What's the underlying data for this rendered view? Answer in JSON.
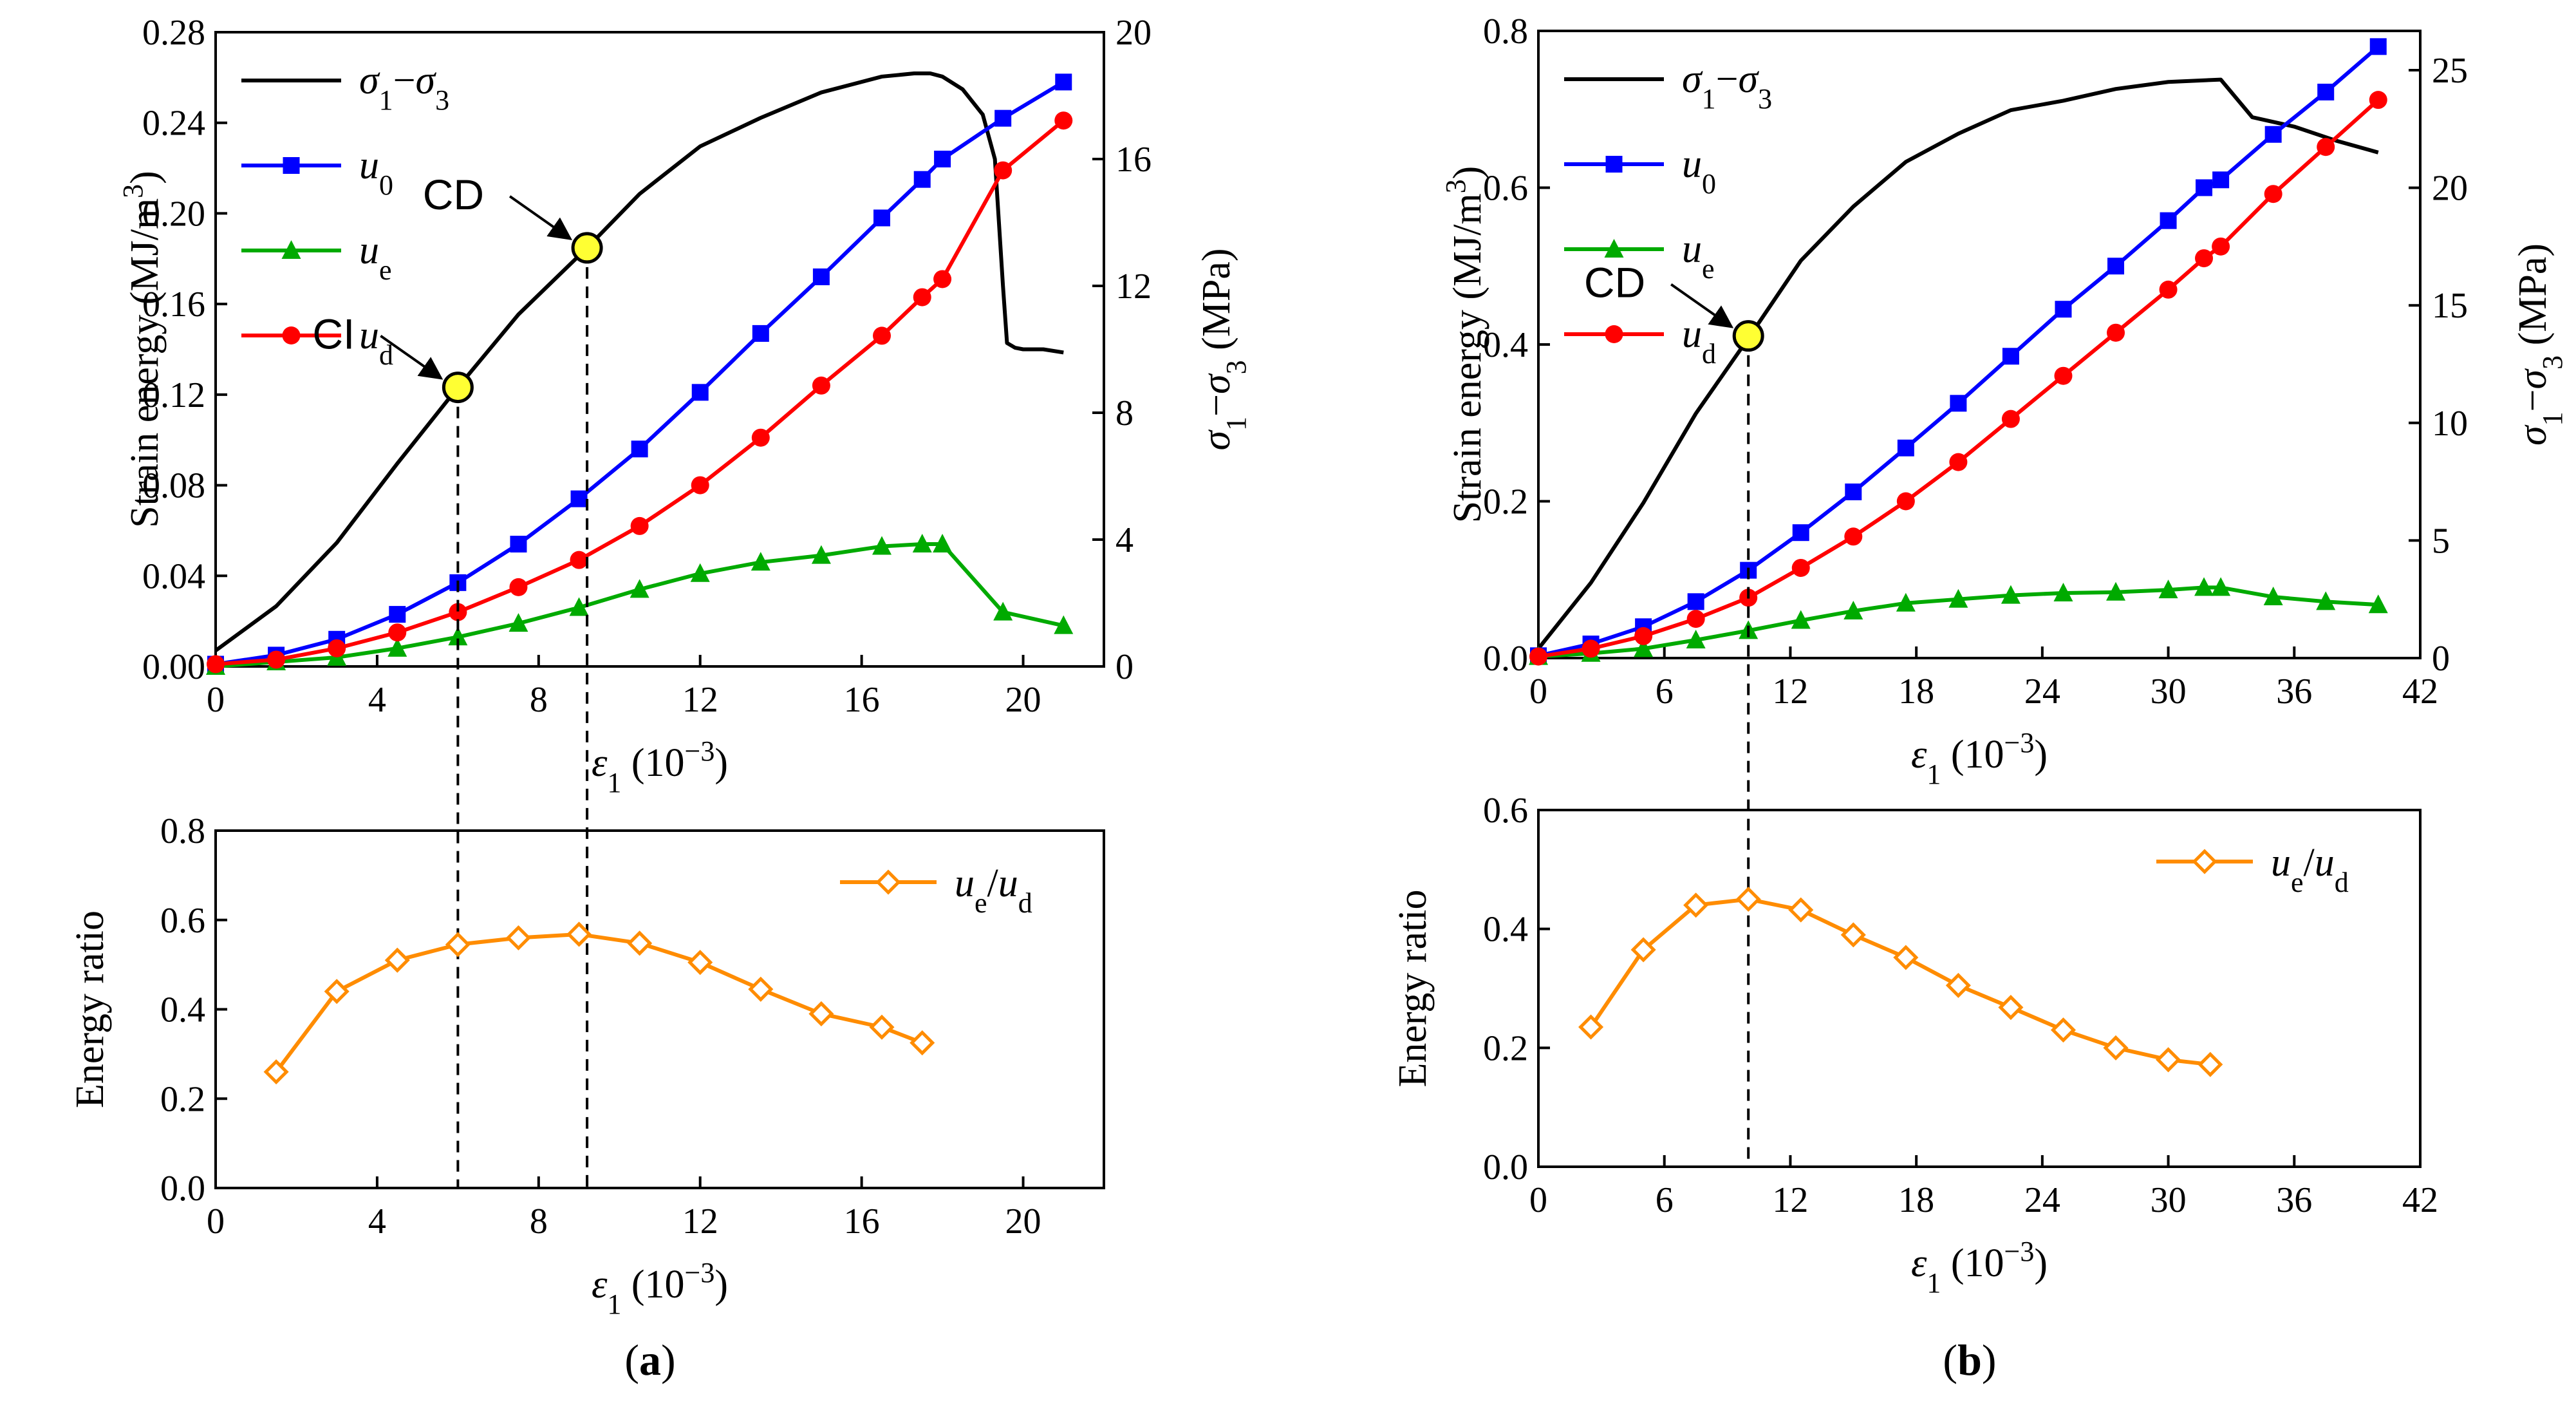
{
  "chart_data": [
    {
      "id": "a_top",
      "type": "line",
      "panel_label": "a",
      "xlabel": "ε1 (10−3)",
      "ylabel_left": "Strain energy (MJ/m3)",
      "ylabel_right": "σ1−σ3 (MPa)",
      "xlim": [
        0,
        22
      ],
      "ylim_left": [
        0,
        0.28
      ],
      "ylim_right": [
        0,
        20
      ],
      "x_ticks": [
        0,
        4,
        8,
        12,
        16,
        20
      ],
      "y_ticks_left": [
        0.0,
        0.04,
        0.08,
        0.12,
        0.16,
        0.2,
        0.24,
        0.28
      ],
      "y_ticks_right": [
        0,
        4,
        8,
        12,
        16,
        20
      ],
      "legend_position": "top-left",
      "series": [
        {
          "name": "σ1−σ3",
          "axis": "right",
          "color": "#000000",
          "marker": "none",
          "x": [
            0,
            1.5,
            3,
            4.5,
            6,
            7.5,
            9.2,
            10.5,
            12,
            13.5,
            15,
            16.5,
            17.3,
            17.7,
            18.0,
            18.5,
            19.0,
            19.3,
            19.5,
            19.6,
            19.8,
            20.0,
            20.5,
            21.0
          ],
          "y": [
            0.5,
            1.9,
            3.9,
            6.4,
            8.8,
            11.1,
            13.2,
            14.9,
            16.4,
            17.3,
            18.1,
            18.6,
            18.7,
            18.7,
            18.6,
            18.2,
            17.4,
            16.0,
            12.0,
            10.2,
            10.05,
            10.0,
            10.0,
            9.9
          ]
        },
        {
          "name": "u0",
          "axis": "left",
          "color": "#0000ff",
          "marker": "square",
          "x": [
            0,
            1.5,
            3,
            4.5,
            6,
            7.5,
            9,
            10.5,
            12,
            13.5,
            15,
            16.5,
            17.5,
            18.0,
            19.5,
            21.0
          ],
          "y": [
            0.001,
            0.005,
            0.012,
            0.023,
            0.037,
            0.054,
            0.074,
            0.096,
            0.121,
            0.147,
            0.172,
            0.198,
            0.215,
            0.224,
            0.242,
            0.258
          ]
        },
        {
          "name": "ue",
          "axis": "left",
          "color": "#00aa00",
          "marker": "triangle",
          "x": [
            0,
            1.5,
            3,
            4.5,
            6,
            7.5,
            9,
            10.5,
            12,
            13.5,
            15,
            16.5,
            17.5,
            18.0,
            19.5,
            21.0
          ],
          "y": [
            0.0,
            0.002,
            0.004,
            0.008,
            0.013,
            0.019,
            0.026,
            0.034,
            0.041,
            0.046,
            0.049,
            0.053,
            0.054,
            0.054,
            0.024,
            0.018
          ]
        },
        {
          "name": "ud",
          "axis": "left",
          "color": "#ff0000",
          "marker": "circle",
          "x": [
            0,
            1.5,
            3,
            4.5,
            6,
            7.5,
            9,
            10.5,
            12,
            13.5,
            15,
            16.5,
            17.5,
            18.0,
            19.5,
            21.0
          ],
          "y": [
            0.001,
            0.003,
            0.008,
            0.015,
            0.024,
            0.035,
            0.047,
            0.062,
            0.08,
            0.101,
            0.124,
            0.146,
            0.163,
            0.171,
            0.219,
            0.241
          ]
        }
      ],
      "annotations": [
        {
          "text": "CI",
          "x": 6.0,
          "y_right": 8.8
        },
        {
          "text": "CD",
          "x": 9.2,
          "y_right": 13.2
        }
      ]
    },
    {
      "id": "a_bottom",
      "type": "line",
      "xlabel": "ε1 (10−3)",
      "ylabel": "Energy ratio",
      "xlim": [
        0,
        22
      ],
      "ylim": [
        0,
        0.8
      ],
      "x_ticks": [
        0,
        4,
        8,
        12,
        16,
        20
      ],
      "y_ticks": [
        0.0,
        0.2,
        0.4,
        0.6,
        0.8
      ],
      "legend_position": "top-right",
      "series": [
        {
          "name": "ue/ud",
          "color": "#ff8c00",
          "marker": "diamond-open",
          "x": [
            1.5,
            3,
            4.5,
            6,
            7.5,
            9,
            10.5,
            12,
            13.5,
            15,
            16.5,
            17.5
          ],
          "y": [
            0.26,
            0.44,
            0.51,
            0.545,
            0.56,
            0.568,
            0.548,
            0.505,
            0.445,
            0.39,
            0.36,
            0.325
          ]
        }
      ],
      "guide_lines_x": [
        6.0,
        9.2
      ]
    },
    {
      "id": "b_top",
      "type": "line",
      "panel_label": "b",
      "xlabel": "ε1 (10−3)",
      "ylabel_left": "Strain energy (MJ/m3)",
      "ylabel_right": "σ1−σ3 (MPa)",
      "xlim": [
        0,
        42
      ],
      "ylim_left": [
        0,
        0.8
      ],
      "ylim_right": [
        0,
        26.67
      ],
      "x_ticks": [
        0,
        6,
        12,
        18,
        24,
        30,
        36,
        42
      ],
      "y_ticks_left": [
        0.0,
        0.2,
        0.4,
        0.6,
        0.8
      ],
      "y_ticks_right": [
        0,
        5,
        10,
        15,
        20,
        25
      ],
      "legend_position": "top-left",
      "series": [
        {
          "name": "σ1−σ3",
          "axis": "right",
          "color": "#000000",
          "marker": "none",
          "x": [
            0,
            2.5,
            5,
            7.5,
            10,
            12.5,
            15,
            17.5,
            20,
            22.5,
            25,
            27.5,
            30,
            32.5,
            34,
            36,
            38,
            40
          ],
          "y": [
            0.4,
            3.2,
            6.6,
            10.4,
            13.6,
            16.9,
            19.2,
            21.1,
            22.3,
            23.3,
            23.7,
            24.2,
            24.5,
            24.6,
            23.0,
            22.6,
            22.0,
            21.5
          ]
        },
        {
          "name": "u0",
          "axis": "left",
          "color": "#0000ff",
          "marker": "square",
          "x": [
            0,
            2.5,
            5,
            7.5,
            10,
            12.5,
            15,
            17.5,
            20,
            22.5,
            25,
            27.5,
            30,
            31.7,
            32.5,
            35,
            37.5,
            40
          ],
          "y": [
            0.003,
            0.018,
            0.04,
            0.072,
            0.112,
            0.16,
            0.212,
            0.268,
            0.325,
            0.385,
            0.445,
            0.5,
            0.558,
            0.6,
            0.61,
            0.668,
            0.722,
            0.78
          ]
        },
        {
          "name": "ue",
          "axis": "left",
          "color": "#00aa00",
          "marker": "triangle",
          "x": [
            0,
            2.5,
            5,
            7.5,
            10,
            12.5,
            15,
            17.5,
            20,
            22.5,
            25,
            27.5,
            30,
            31.7,
            32.5,
            35,
            37.5,
            40
          ],
          "y": [
            0.002,
            0.006,
            0.012,
            0.023,
            0.035,
            0.048,
            0.06,
            0.07,
            0.075,
            0.08,
            0.083,
            0.084,
            0.087,
            0.09,
            0.09,
            0.078,
            0.072,
            0.068
          ]
        },
        {
          "name": "ud",
          "axis": "left",
          "color": "#ff0000",
          "marker": "circle",
          "x": [
            0,
            2.5,
            5,
            7.5,
            10,
            12.5,
            15,
            17.5,
            20,
            22.5,
            25,
            27.5,
            30,
            31.7,
            32.5,
            35,
            37.5,
            40
          ],
          "y": [
            0.002,
            0.012,
            0.028,
            0.05,
            0.077,
            0.115,
            0.155,
            0.2,
            0.25,
            0.305,
            0.36,
            0.415,
            0.47,
            0.51,
            0.525,
            0.592,
            0.652,
            0.712
          ]
        }
      ],
      "annotations": [
        {
          "text": "CD",
          "x": 10.0,
          "y_right": 13.7
        }
      ]
    },
    {
      "id": "b_bottom",
      "type": "line",
      "xlabel": "ε1 (10−3)",
      "ylabel": "Energy ratio",
      "xlim": [
        0,
        42
      ],
      "ylim": [
        0,
        0.6
      ],
      "x_ticks": [
        0,
        6,
        12,
        18,
        24,
        30,
        36,
        42
      ],
      "y_ticks": [
        0.0,
        0.2,
        0.4,
        0.6
      ],
      "legend_position": "top-right",
      "series": [
        {
          "name": "ue/ud",
          "color": "#ff8c00",
          "marker": "diamond-open",
          "x": [
            2.5,
            5,
            7.5,
            10,
            12.5,
            15,
            17.5,
            20,
            22.5,
            25,
            27.5,
            30,
            32
          ],
          "y": [
            0.235,
            0.365,
            0.44,
            0.45,
            0.432,
            0.39,
            0.352,
            0.305,
            0.268,
            0.23,
            0.2,
            0.18,
            0.172
          ]
        }
      ],
      "guide_lines_x": [
        10.0
      ]
    }
  ]
}
